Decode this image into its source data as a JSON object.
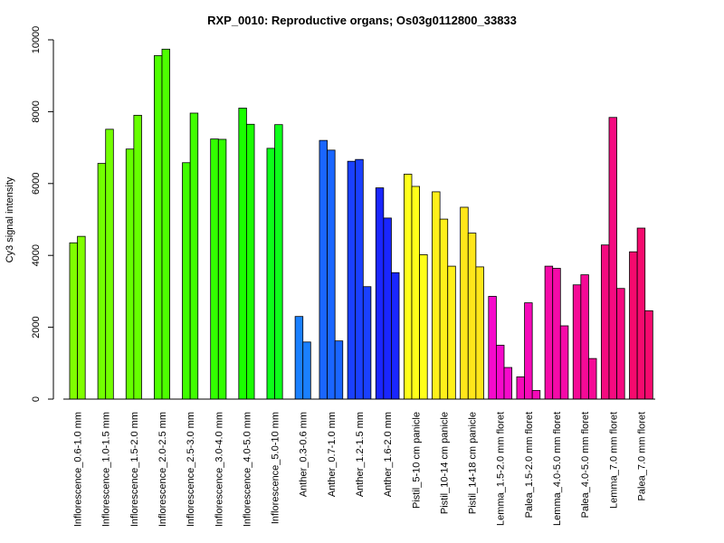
{
  "chart_data": {
    "type": "bar",
    "title": "RXP_0010: Reproductive organs; Os03g0112800_33833",
    "xlabel": "",
    "ylabel": "Cy3 signal intensity",
    "ylim": [
      0,
      10000
    ],
    "yticks": [
      0,
      2000,
      4000,
      6000,
      8000,
      10000
    ],
    "grid": false,
    "legend": "none",
    "groups": [
      {
        "label": "Inflorescence_0.6-1.0 mm",
        "color": "#80ff00",
        "values": [
          4350,
          4530
        ]
      },
      {
        "label": "Inflorescence_1.0-1.5 mm",
        "color": "#73ff00",
        "values": [
          6560,
          7510
        ]
      },
      {
        "label": "Inflorescence_1.5-2.0 mm",
        "color": "#66ff00",
        "values": [
          6960,
          7900
        ]
      },
      {
        "label": "Inflorescence_2.0-2.5 mm",
        "color": "#4dff00",
        "values": [
          9560,
          9740
        ]
      },
      {
        "label": "Inflorescence_2.5-3.0 mm",
        "color": "#40ff00",
        "values": [
          6580,
          7960
        ]
      },
      {
        "label": "Inflorescence_3.0-4.0 mm",
        "color": "#33ff00",
        "values": [
          7240,
          7230
        ]
      },
      {
        "label": "Inflorescence_4.0-5.0 mm",
        "color": "#1aff00",
        "values": [
          8100,
          7650
        ]
      },
      {
        "label": "Inflorescence_5.0-10 mm",
        "color": "#0dff1a",
        "values": [
          6980,
          7640
        ]
      },
      {
        "label": "Anther_0.3-0.6 mm",
        "color": "#1a80ff",
        "values": [
          2300,
          1590
        ]
      },
      {
        "label": "Anther_0.7-1.0 mm",
        "color": "#1a66ff",
        "values": [
          7200,
          6930,
          1620
        ]
      },
      {
        "label": "Anther_1.2-1.5 mm",
        "color": "#1a40ff",
        "values": [
          6620,
          6670,
          3130
        ]
      },
      {
        "label": "Anther_1.6-2.0 mm",
        "color": "#1a26ff",
        "values": [
          5880,
          5040,
          3520
        ]
      },
      {
        "label": "Pistil_5-10 cm panicle",
        "color": "#ffff1a",
        "values": [
          6260,
          5920,
          4020
        ]
      },
      {
        "label": "Pistil_10-14 cm panicle",
        "color": "#fff01a",
        "values": [
          5770,
          5010,
          3700
        ]
      },
      {
        "label": "Pistil_14-18 cm panicle",
        "color": "#ffe61a",
        "values": [
          5340,
          4620,
          3680
        ]
      },
      {
        "label": "Lemma_1.5-2.0 mm floret",
        "color": "#f50acb",
        "values": [
          2860,
          1500,
          880
        ]
      },
      {
        "label": "Palea_1.5-2.0 mm floret",
        "color": "#f50ab8",
        "values": [
          620,
          2680,
          240
        ]
      },
      {
        "label": "Lemma_4.0-5.0 mm floret",
        "color": "#f50aa8",
        "values": [
          3700,
          3640,
          2040
        ]
      },
      {
        "label": "Palea_4.0-5.0 mm floret",
        "color": "#f50a96",
        "values": [
          3180,
          3460,
          1130
        ]
      },
      {
        "label": "Lemma_7.0 mm floret",
        "color": "#f50a80",
        "values": [
          4290,
          7840,
          3080
        ]
      },
      {
        "label": "Palea_7.0 mm floret",
        "color": "#f50a6e",
        "values": [
          4100,
          4760,
          2460
        ]
      }
    ]
  }
}
